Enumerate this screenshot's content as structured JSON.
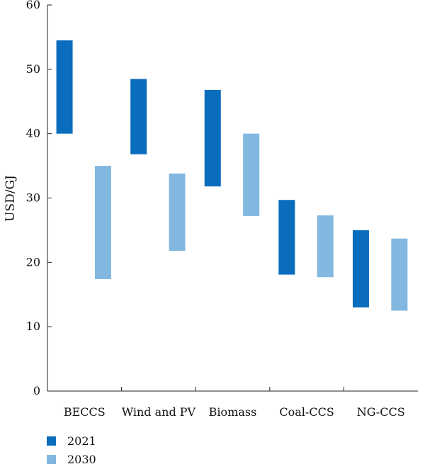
{
  "chart_data": {
    "type": "floating-bar",
    "title": "",
    "xlabel": "",
    "ylabel": "USD/GJ",
    "ylim": [
      0,
      60
    ],
    "yticks": [
      0,
      10,
      20,
      30,
      40,
      50,
      60
    ],
    "categories": [
      "BECCS",
      "Wind and PV",
      "Biomass",
      "Coal-CCS",
      "NG-CCS"
    ],
    "legend_position": "bottom-left",
    "grid": false,
    "series": [
      {
        "name": "2021",
        "color": "#0a6cbd",
        "ranges": [
          [
            40,
            54.5
          ],
          [
            36.8,
            48.5
          ],
          [
            31.8,
            46.8
          ],
          [
            18.1,
            29.7
          ],
          [
            13,
            25
          ]
        ]
      },
      {
        "name": "2030",
        "color": "#82b8e0",
        "ranges": [
          [
            17.4,
            35
          ],
          [
            21.8,
            33.8
          ],
          [
            27.2,
            40
          ],
          [
            17.7,
            27.3
          ],
          [
            12.5,
            23.7
          ]
        ]
      }
    ]
  }
}
